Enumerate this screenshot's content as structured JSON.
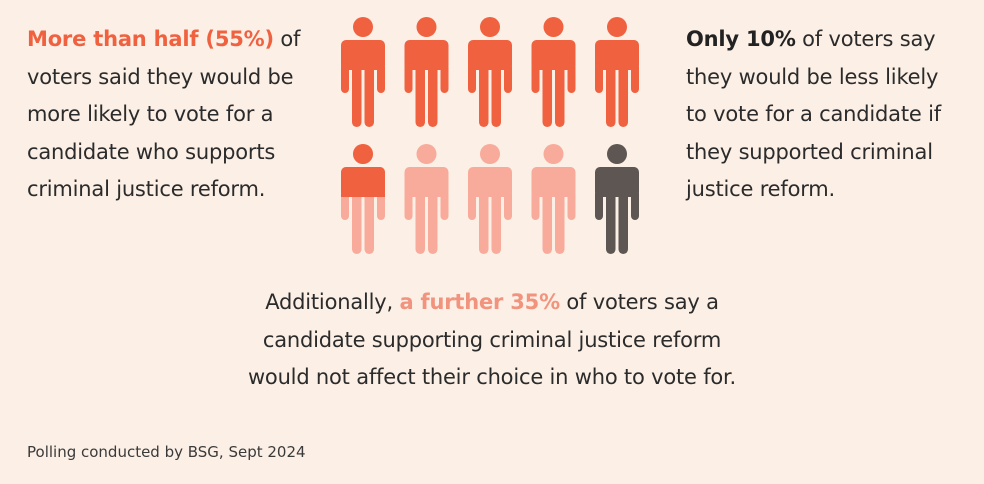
{
  "left_text": {
    "highlight": "More than half (55%)",
    "lines": [
      " of",
      "voters said they would be",
      "more likely to vote for a",
      "candidate who supports",
      "criminal justice reform."
    ]
  },
  "right_text": {
    "highlight": "Only 10%",
    "lines": [
      " of voters say",
      "they would be less likely",
      "to vote for a candidate if",
      "they supported criminal",
      "justice reform."
    ]
  },
  "bottom_text": {
    "prefix": "Additionally, ",
    "highlight": "a further 35%",
    "lines": [
      " of voters say a",
      "candidate supporting criminal justice reform",
      "would not affect their choice in who to vote for."
    ]
  },
  "footnote": "Polling conducted by BSG, Sept 2024",
  "colors": {
    "background": "#fbefe6",
    "more_likely": "#f0613f",
    "no_effect": "#f8ab9a",
    "less_likely": "#5d5653",
    "text": "#2b2b2b"
  },
  "chart_data": {
    "type": "pictogram",
    "total_icons": 10,
    "icons_per_row": 5,
    "series": [
      {
        "name": "More than half (55%)",
        "value": 55,
        "color": "#f0613f"
      },
      {
        "name": "a further 35%",
        "value": 35,
        "color": "#f8ab9a"
      },
      {
        "name": "Only 10%",
        "value": 10,
        "color": "#5d5653"
      }
    ]
  }
}
